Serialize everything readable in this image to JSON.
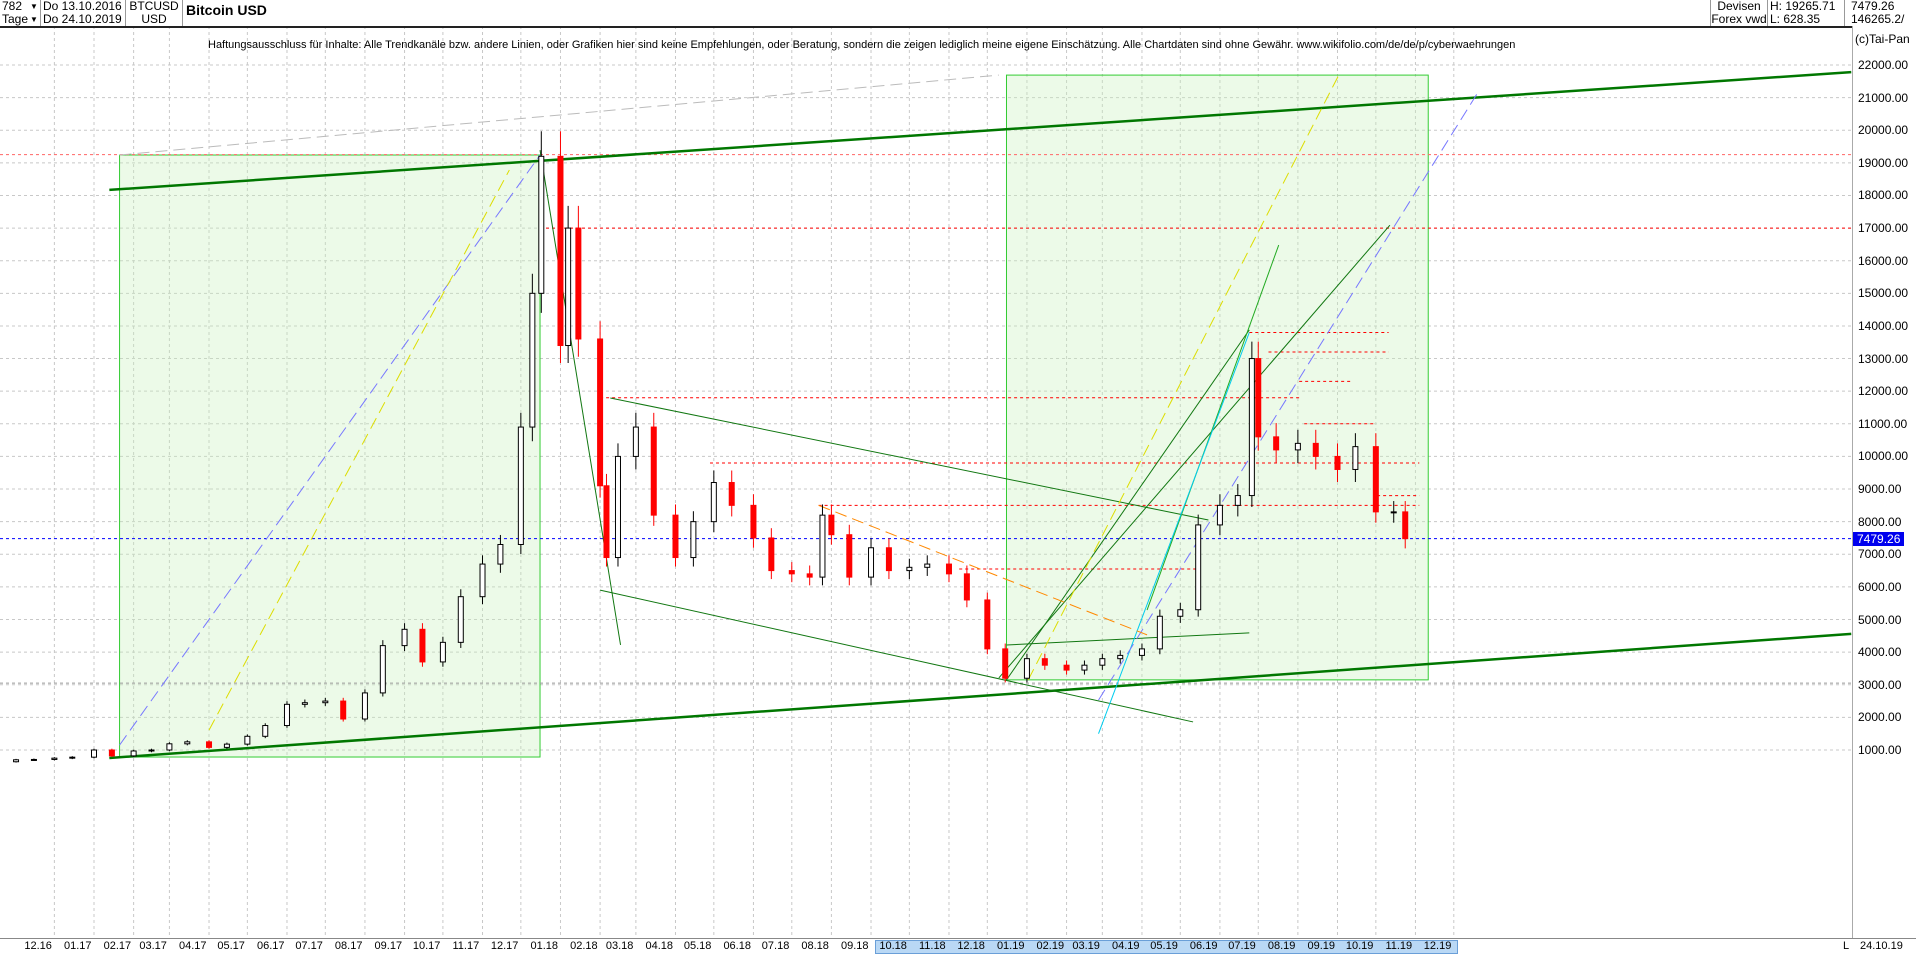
{
  "header": {
    "period_count": "782",
    "period_unit": "Tage",
    "date_from": "Do 13.10.2016",
    "date_to": "Do 24.10.2019",
    "symbol": "BTCUSD",
    "currency": "USD",
    "title": "Bitcoin USD",
    "source_1": "Devisen",
    "source_2": "Forex vwd",
    "high": "H: 19265.71",
    "low": "L: 628.35",
    "last": "7479.26",
    "volume": "146265.2/",
    "copyright": "(c)Tai-Pan"
  },
  "disclaimer": "Haftungsausschluss für Inhalte: Alle Trendkanäle bzw. andere Linien, oder Grafiken hier sind keine Empfehlungen, oder Beratung, sondern die zeigen lediglich meine eigene Einschätzung. Alle Chartdaten sind ohne Gewähr.  www.wikifolio.com/de/de/p/cyberwaehrungen",
  "chart_data": {
    "type": "candlestick",
    "title": "Bitcoin USD",
    "ylim": [
      1000,
      22000
    ],
    "y_ticks": [
      "1000.00",
      "2000.00",
      "3000.00",
      "4000.00",
      "5000.00",
      "6000.00",
      "7000.00",
      "8000.00",
      "9000.00",
      "10000.00",
      "11000.00",
      "12000.00",
      "13000.00",
      "14000.00",
      "15000.00",
      "16000.00",
      "17000.00",
      "18000.00",
      "19000.00",
      "20000.00",
      "21000.00",
      "22000.00"
    ],
    "x_ticks": [
      "12.16",
      "01.17",
      "02.17",
      "03.17",
      "04.17",
      "05.17",
      "06.17",
      "07.17",
      "08.17",
      "09.17",
      "10.17",
      "11.17",
      "12.17",
      "01.18",
      "02.18",
      "03.18",
      "04.18",
      "05.18",
      "06.18",
      "07.18",
      "08.18",
      "09.18",
      "10.18",
      "11.18",
      "12.18",
      "01.19",
      "02.19",
      "03.19",
      "04.19",
      "05.19",
      "06.19",
      "07.19",
      "08.19",
      "09.19",
      "10.19",
      "11.19",
      "12.19"
    ],
    "x_highlight": [
      "10.18",
      "12.19"
    ],
    "x_axis_end_marker": "L",
    "x_axis_end_date": "24.10.19",
    "current_price_label": "7479.26",
    "grid": true,
    "colors": {
      "up": "#000000",
      "down": "#ff0000",
      "current": "#0000ff",
      "channel": "#007700",
      "box": "#33cc33",
      "resistance": "#ff0000"
    },
    "dates": [
      "2016-10-15",
      "2016-11-01",
      "2016-11-15",
      "2016-12-01",
      "2016-12-15",
      "2017-01-01",
      "2017-01-15",
      "2017-02-01",
      "2017-02-15",
      "2017-03-01",
      "2017-03-15",
      "2017-04-01",
      "2017-04-15",
      "2017-05-01",
      "2017-05-15",
      "2017-06-01",
      "2017-06-15",
      "2017-07-01",
      "2017-07-15",
      "2017-08-01",
      "2017-08-15",
      "2017-09-01",
      "2017-09-15",
      "2017-10-01",
      "2017-10-15",
      "2017-11-01",
      "2017-11-15",
      "2017-12-01",
      "2017-12-10",
      "2017-12-17",
      "2018-01-01",
      "2018-01-07",
      "2018-01-15",
      "2018-02-01",
      "2018-02-06",
      "2018-02-15",
      "2018-03-01",
      "2018-03-15",
      "2018-04-01",
      "2018-04-15",
      "2018-05-01",
      "2018-05-15",
      "2018-06-01",
      "2018-06-15",
      "2018-07-01",
      "2018-07-15",
      "2018-07-25",
      "2018-08-01",
      "2018-08-15",
      "2018-09-01",
      "2018-09-15",
      "2018-10-01",
      "2018-10-15",
      "2018-11-01",
      "2018-11-15",
      "2018-12-01",
      "2018-12-15",
      "2019-01-01",
      "2019-01-15",
      "2019-02-01",
      "2019-02-15",
      "2019-03-01",
      "2019-03-15",
      "2019-04-01",
      "2019-04-15",
      "2019-05-01",
      "2019-05-15",
      "2019-06-01",
      "2019-06-15",
      "2019-06-26",
      "2019-07-01",
      "2019-07-15",
      "2019-08-01",
      "2019-08-15",
      "2019-09-01",
      "2019-09-15",
      "2019-10-01",
      "2019-10-15",
      "2019-10-24"
    ],
    "close": [
      640,
      700,
      710,
      750,
      780,
      1000,
      820,
      970,
      1000,
      1190,
      1250,
      1080,
      1180,
      1420,
      1750,
      2400,
      2450,
      2500,
      1950,
      2750,
      4200,
      4700,
      3700,
      4300,
      5700,
      6700,
      7300,
      10900,
      15000,
      19200,
      13400,
      17000,
      13600,
      9100,
      6900,
      10000,
      10900,
      8200,
      6900,
      8000,
      9200,
      8500,
      7500,
      6500,
      6400,
      6300,
      8200,
      7600,
      6300,
      7200,
      6500,
      6600,
      6700,
      6400,
      5600,
      4100,
      3200,
      3800,
      3600,
      3450,
      3600,
      3800,
      3900,
      4100,
      5100,
      5300,
      7900,
      8500,
      8800,
      13000,
      10600,
      10200,
      10400,
      10000,
      9600,
      10300,
      8300,
      8300,
      7479.26
    ],
    "horizontal_lines": [
      {
        "price": 19250,
        "style": "dotted",
        "color": "#ff6666"
      },
      {
        "price": 17000,
        "from": "2017-12-16",
        "style": "dotted",
        "color": "#ff0000"
      },
      {
        "price": 11800,
        "from": "2018-02-01",
        "to": "2019-08-02",
        "style": "dotted",
        "color": "#ff0000"
      },
      {
        "price": 9800,
        "from": "2018-04-28",
        "to": "2019-11-04",
        "style": "dotted",
        "color": "#ff0000"
      },
      {
        "price": 8500,
        "from": "2018-07-22",
        "to": "2019-11-04",
        "style": "dotted",
        "color": "#ff0000"
      },
      {
        "price": 6550,
        "from": "2018-11-09",
        "to": "2019-05-15",
        "style": "dotted",
        "color": "#ff0000"
      },
      {
        "price": 13800,
        "from": "2019-06-24",
        "to": "2019-10-11",
        "style": "dotted",
        "color": "#ff0000"
      },
      {
        "price": 13200,
        "from": "2019-07-09",
        "to": "2019-10-11",
        "style": "dotted",
        "color": "#ff0000"
      },
      {
        "price": 12300,
        "from": "2019-08-02",
        "to": "2019-09-11",
        "style": "dotted",
        "color": "#ff0000"
      },
      {
        "price": 11000,
        "from": "2019-08-06",
        "to": "2019-09-30",
        "style": "dotted",
        "color": "#ff0000"
      },
      {
        "price": 8800,
        "from": "2019-10-02",
        "to": "2019-11-04",
        "style": "dotted",
        "color": "#ff0000"
      },
      {
        "price": 3050,
        "style": "dotted",
        "color": "#999999"
      },
      {
        "price": 7479.26,
        "style": "dotted",
        "color": "#0000ff"
      }
    ],
    "boxes": [
      {
        "from": "2017-01-21",
        "to": "2017-12-16",
        "top": 19240,
        "bottom": 785
      },
      {
        "from": "2018-12-16",
        "to": "2019-11-11",
        "top": 21690,
        "bottom": 3150
      }
    ],
    "trendlines": [
      {
        "from": [
          "2017-01-13",
          18170
        ],
        "to": [
          "2020-10-07",
          21780
        ],
        "color": "#007700",
        "width": 2.5
      },
      {
        "from": [
          "2017-01-13",
          755
        ],
        "to": [
          "2020-10-07",
          4560
        ],
        "color": "#007700",
        "width": 2.5
      },
      {
        "from": [
          "2017-12-16",
          19390
        ],
        "to": [
          "2018-02-17",
          4220
        ],
        "color": "#117711",
        "width": 1
      },
      {
        "from": [
          "2018-02-09",
          11790
        ],
        "to": [
          "2019-05-23",
          8050
        ],
        "color": "#117711",
        "width": 1
      },
      {
        "from": [
          "2018-02-01",
          5900
        ],
        "to": [
          "2019-05-11",
          1860
        ],
        "color": "#117711",
        "width": 1
      },
      {
        "from": [
          "2018-12-10",
          3210
        ],
        "to": [
          "2019-10-12",
          17090
        ],
        "color": "#117711",
        "width": 1
      },
      {
        "from": [
          "2018-12-16",
          3150
        ],
        "to": [
          "2019-06-24",
          13880
        ],
        "color": "#117711",
        "width": 1
      },
      {
        "from": [
          "2018-12-16",
          4220
        ],
        "to": [
          "2019-06-24",
          4590
        ],
        "color": "#117711",
        "width": 1
      },
      {
        "from": [
          "2019-04-05",
          5290
        ],
        "to": [
          "2019-07-17",
          16480
        ],
        "color": "#22aa22",
        "width": 1
      },
      {
        "from": [
          "2019-02-26",
          1500
        ],
        "to": [
          "2019-06-24",
          13800
        ],
        "color": "#00ccee",
        "width": 1
      },
      {
        "from": [
          "2017-01-21",
          1150
        ],
        "to": [
          "2017-12-16",
          19240
        ],
        "color": "#7777ff",
        "width": 1,
        "dash": true
      },
      {
        "from": [
          "2017-04-01",
          1610
        ],
        "to": [
          "2017-11-22",
          18780
        ],
        "color": "#dddd00",
        "width": 1,
        "dash": true
      },
      {
        "from": [
          "2017-01-21",
          19240
        ],
        "to": [
          "2018-12-10",
          21690
        ],
        "color": "#bbbbbb",
        "width": 1,
        "dash": true
      },
      {
        "from": [
          "2019-02-26",
          2530
        ],
        "to": [
          "2019-12-21",
          21230
        ],
        "color": "#7777ff",
        "width": 1,
        "dash": true
      },
      {
        "from": [
          "2019-01-02",
          3150
        ],
        "to": [
          "2019-09-02",
          21690
        ],
        "color": "#dddd00",
        "width": 1,
        "dash": true
      },
      {
        "from": [
          "2018-07-22",
          8500
        ],
        "to": [
          "2019-04-05",
          4530
        ],
        "color": "#ff8800",
        "width": 1,
        "dash": true
      }
    ]
  }
}
